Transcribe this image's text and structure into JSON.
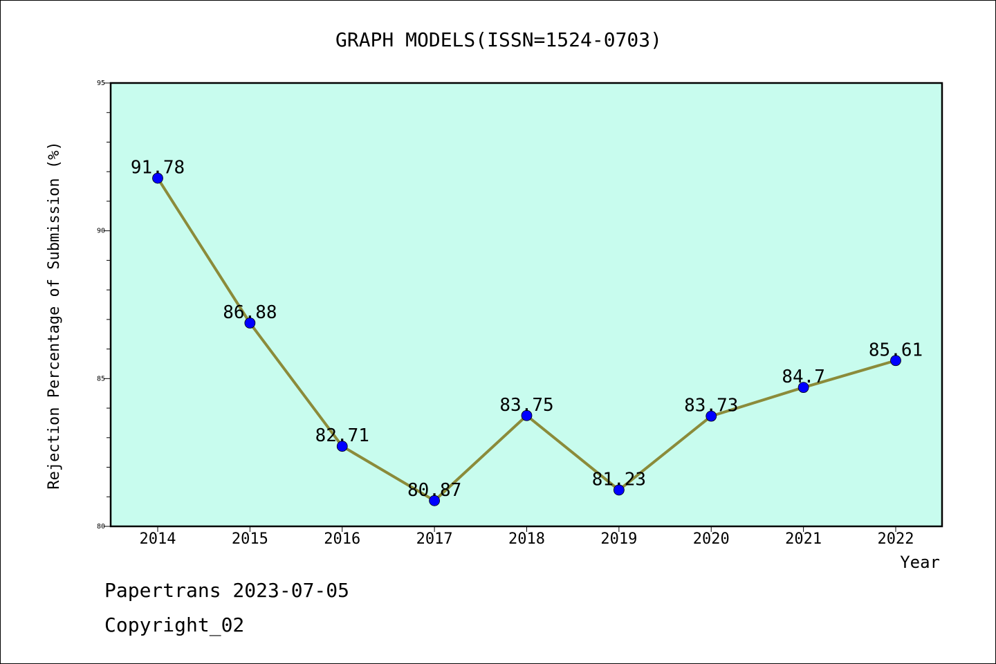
{
  "chart_data": {
    "type": "line",
    "title": "GRAPH MODELS(ISSN=1524-0703)",
    "xlabel": "Year",
    "ylabel": "Rejection Percentage of Submission (%)",
    "ylim": [
      80,
      95
    ],
    "yticks": [
      "80",
      "85",
      "90",
      "95"
    ],
    "grid": false,
    "categories": [
      "2014",
      "2015",
      "2016",
      "2017",
      "2018",
      "2019",
      "2020",
      "2021",
      "2022"
    ],
    "series": [
      {
        "values": [
          91.78,
          86.88,
          82.71,
          80.87,
          83.75,
          81.23,
          83.73,
          84.7,
          85.61
        ],
        "labels": [
          "91.78",
          "86.88",
          "82.71",
          "80.87",
          "83.75",
          "81.23",
          "83.73",
          "84.7",
          "85.61"
        ]
      }
    ],
    "colors": {
      "plot_background": "#c8fcee",
      "line": "#8b8b3a",
      "marker": "#0000ff"
    }
  },
  "footer": {
    "line1": "Papertrans 2023-07-05",
    "line2": "Copyright_02"
  }
}
